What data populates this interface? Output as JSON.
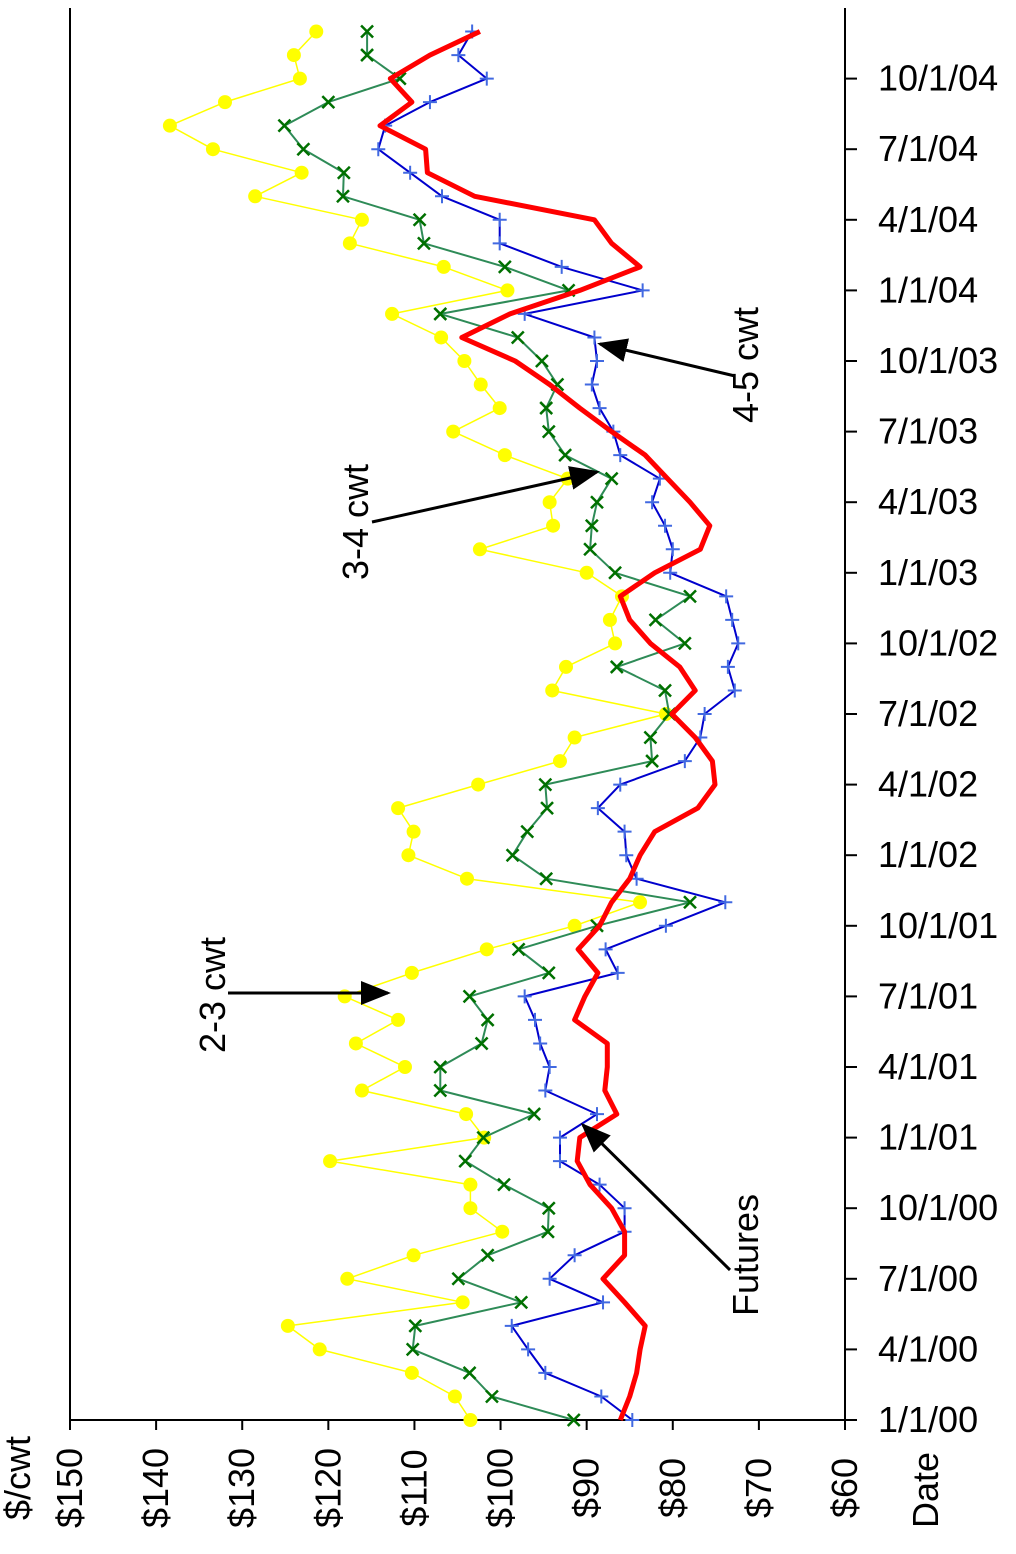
{
  "chart_data": {
    "type": "line",
    "y_axis_label": "$/cwt",
    "x_axis_label": "Date",
    "x": [
      "1/1/00",
      "2/1/00",
      "3/1/00",
      "4/1/00",
      "5/1/00",
      "6/1/00",
      "7/1/00",
      "8/1/00",
      "9/1/00",
      "10/1/00",
      "11/1/00",
      "12/1/00",
      "1/1/01",
      "2/1/01",
      "3/1/01",
      "4/1/01",
      "5/1/01",
      "6/1/01",
      "7/1/01",
      "8/1/01",
      "9/1/01",
      "10/1/01",
      "11/1/01",
      "12/1/01",
      "1/1/02",
      "2/1/02",
      "3/1/02",
      "4/1/02",
      "5/1/02",
      "6/1/02",
      "7/1/02",
      "8/1/02",
      "9/1/02",
      "10/1/02",
      "11/1/02",
      "12/1/02",
      "1/1/03",
      "2/1/03",
      "3/1/03",
      "4/1/03",
      "5/1/03",
      "6/1/03",
      "7/1/03",
      "8/1/03",
      "9/1/03",
      "10/1/03",
      "11/1/03",
      "12/1/03",
      "1/1/04",
      "2/1/04",
      "3/1/04",
      "4/1/04",
      "5/1/04",
      "6/1/04",
      "7/1/04",
      "8/1/04",
      "9/1/04",
      "10/1/04",
      "11/1/04",
      "12/1/04"
    ],
    "xlim": [
      "1/1/00",
      "1/1/05"
    ],
    "xticks": [
      "1/1/00",
      "4/1/00",
      "7/1/00",
      "10/1/00",
      "1/1/01",
      "4/1/01",
      "7/1/01",
      "10/1/01",
      "1/1/02",
      "4/1/02",
      "7/1/02",
      "10/1/02",
      "1/1/03",
      "4/1/03",
      "7/1/03",
      "10/1/03",
      "1/1/04",
      "4/1/04",
      "7/1/04",
      "10/1/04"
    ],
    "ylim": [
      150,
      60
    ],
    "yticks": [
      {
        "value": 150,
        "label": "$150"
      },
      {
        "value": 140,
        "label": "$140"
      },
      {
        "value": 130,
        "label": "$130"
      },
      {
        "value": 120,
        "label": "$120"
      },
      {
        "value": 110,
        "label": "$110"
      },
      {
        "value": 100,
        "label": "$100"
      },
      {
        "value": 90,
        "label": "$90"
      },
      {
        "value": 80,
        "label": "$80"
      },
      {
        "value": 70,
        "label": "$70"
      },
      {
        "value": 60,
        "label": "$60"
      }
    ],
    "orientation": "horizontal-values",
    "series": [
      {
        "color": "#ffff00",
        "marker": "circle",
        "width": 1.5,
        "values": [
          103.5,
          105.3,
          110.3,
          121,
          124.7,
          104.4,
          117.8,
          110.1,
          99.8,
          103.5,
          103.5,
          119.8,
          101.9,
          104,
          116.1,
          111.1,
          116.8,
          111.9,
          118.1,
          110.3,
          101.6,
          91.4,
          83.8,
          103.9,
          110.7,
          110.1,
          111.9,
          102.6,
          93.1,
          91.4,
          80.8,
          94,
          92.4,
          86.7,
          87.3,
          85.9,
          90,
          102.4,
          93.9,
          94.3,
          92.2,
          99.5,
          105.5,
          100.1,
          102.3,
          104.2,
          106.9,
          112.6,
          99.2,
          106.6,
          117.5,
          116.1,
          128.5,
          123.1,
          133.4,
          138.4,
          132,
          123.3,
          124,
          121.4
        ]
      },
      {
        "color": "#2e8b57",
        "marker_color": "#007000",
        "marker": "x",
        "width": 2,
        "values": [
          91.5,
          101,
          103.6,
          110.2,
          109.9,
          97.6,
          104.9,
          101.5,
          94.5,
          94.4,
          99.6,
          104.1,
          102,
          96.1,
          107,
          107,
          102.2,
          101.5,
          103.6,
          94.4,
          97.9,
          88.8,
          78,
          94.7,
          98.6,
          96.9,
          94.6,
          94.8,
          82.4,
          82.6,
          80.4,
          80.9,
          86.5,
          78.6,
          82,
          78,
          86.7,
          89.6,
          89.4,
          88.8,
          87.1,
          92.5,
          94.4,
          94.7,
          93.4,
          95.2,
          98,
          107,
          92.1,
          99.5,
          108.9,
          109.4,
          118.3,
          118.2,
          122.9,
          125.1,
          120,
          111.7,
          115.5,
          115.5
        ]
      },
      {
        "color": "#0000cd",
        "marker_color": "#4169e1",
        "marker": "plus",
        "width": 2,
        "values": [
          84.7,
          88.3,
          94.8,
          96.8,
          98.7,
          88.1,
          94.3,
          91.4,
          85.6,
          85.6,
          88.5,
          93.1,
          93.1,
          88.8,
          94.8,
          94.3,
          95.4,
          96,
          97.2,
          86.4,
          87.8,
          80.8,
          73.9,
          84.2,
          85.4,
          85.6,
          88.7,
          86.1,
          78.6,
          76.8,
          76.3,
          72.8,
          73.6,
          72.4,
          73.1,
          73.8,
          80.3,
          80,
          80.9,
          82.4,
          81.5,
          86.1,
          86.9,
          88.5,
          89.4,
          88.8,
          89.1,
          97.2,
          83.5,
          92.9,
          100.1,
          100.1,
          106.8,
          110.5,
          114.2,
          113.4,
          108.2,
          101.6,
          104.9,
          103.3
        ]
      },
      {
        "color": "#ff0000",
        "marker": "none",
        "width": 5,
        "values": [
          86.1,
          85,
          84.2,
          83.8,
          83.2,
          85.6,
          88.1,
          85.6,
          85.6,
          87.1,
          89.6,
          91.1,
          90.8,
          86.5,
          87.9,
          87.6,
          87.6,
          91.4,
          90.2,
          88.7,
          91,
          88.5,
          87.1,
          85,
          83.8,
          82.1,
          77.1,
          75.1,
          75.4,
          77.4,
          80.1,
          77.4,
          79.2,
          82.6,
          85,
          86.1,
          82.1,
          76.8,
          75.7,
          78,
          80.6,
          83.2,
          87.1,
          90.8,
          94.3,
          98.3,
          104.5,
          98.9,
          90.8,
          83.8,
          87.1,
          89.1,
          103,
          108.5,
          108.7,
          114,
          110.3,
          112.8,
          108.2,
          102.4
        ]
      }
    ],
    "annotations": [
      {
        "text": "2-3 cwt"
      },
      {
        "text": "3-4 cwt"
      },
      {
        "text": "4-5 cwt"
      },
      {
        "text": "Futures"
      }
    ]
  }
}
